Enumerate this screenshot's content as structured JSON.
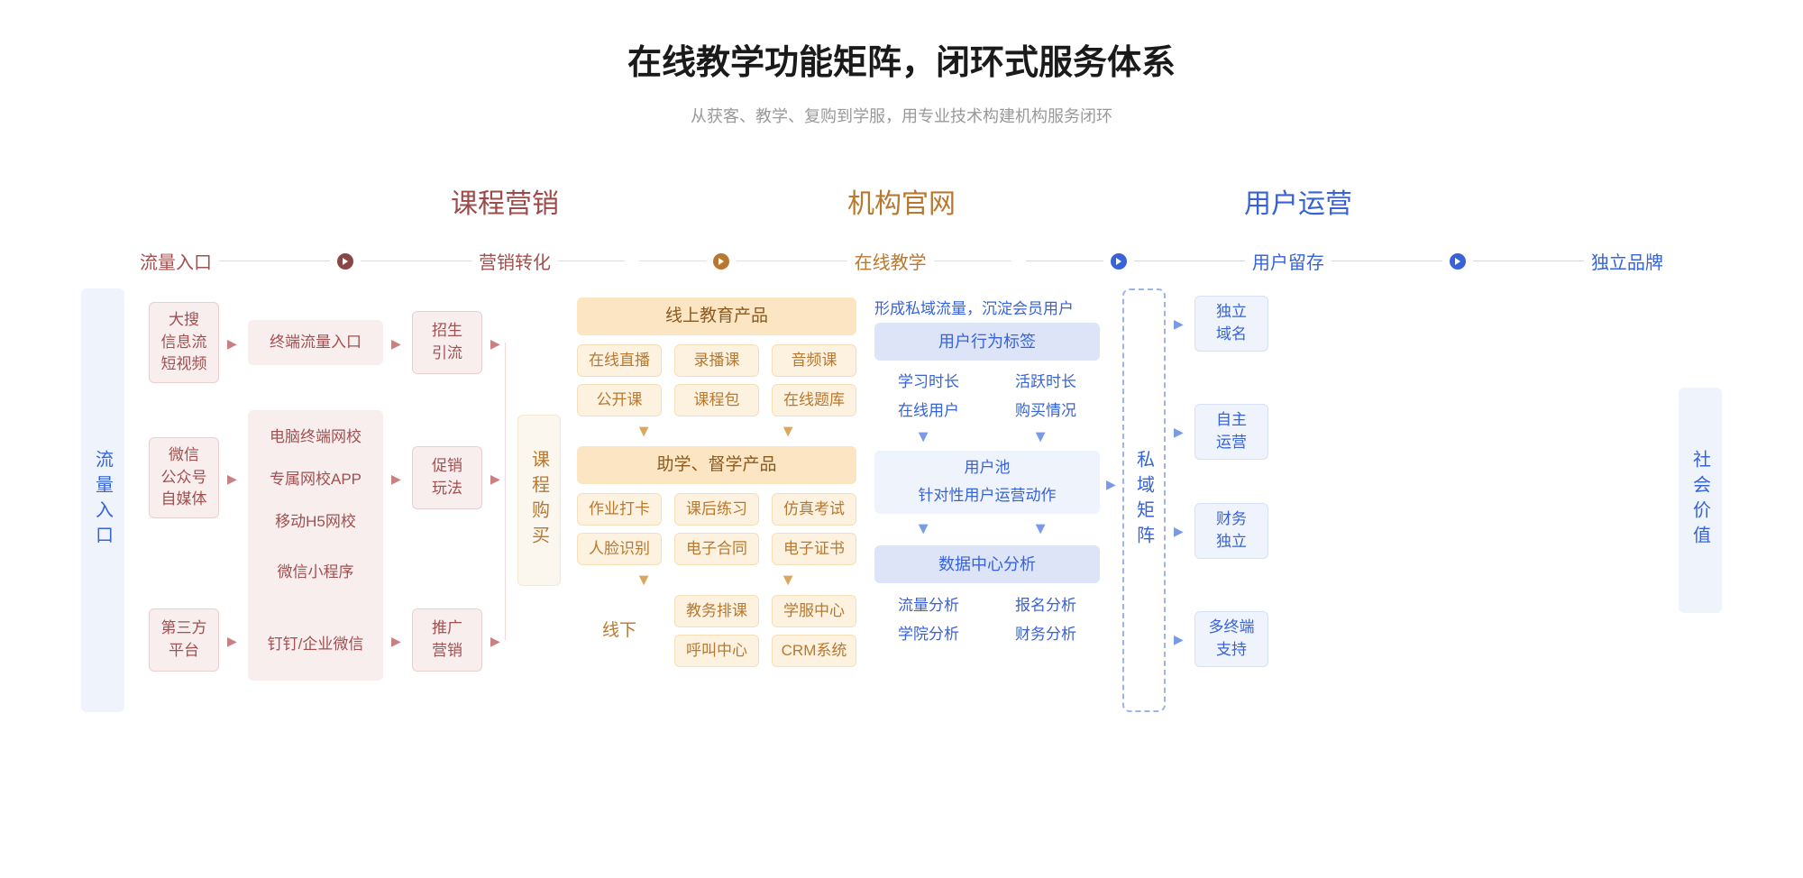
{
  "title": "在线教学功能矩阵，闭环式服务体系",
  "subtitle": "从获客、教学、复购到学服，用专业技术构建机构服务闭环",
  "sections": {
    "s1": "课程营销",
    "s2": "机构官网",
    "s3": "用户运营"
  },
  "flow": {
    "f1": "流量入口",
    "f2": "营销转化",
    "f3": "在线教学",
    "f4": "用户留存",
    "f5": "独立品牌"
  },
  "vbars": {
    "left": "流量入口",
    "right": "社会价值",
    "mid": "课程购买",
    "dashed": "私域矩阵"
  },
  "red": {
    "c1": "大搜\n信息流\n短视频",
    "c2": "微信\n公众号\n自媒体",
    "c3": "第三方\n平台",
    "m1": "终端流量入口",
    "m2": "电脑终端网校",
    "m3": "专属网校APP",
    "m4": "移动H5网校",
    "m5": "微信小程序",
    "m6": "钉钉/企业微信",
    "r1": "招生\n引流",
    "r2": "促销\n玩法",
    "r3": "推广\n营销"
  },
  "orange": {
    "h1": "线上教育产品",
    "h2": "助学、督学产品",
    "g1": [
      "在线直播",
      "录播课",
      "音频课"
    ],
    "g2": [
      "公开课",
      "课程包",
      "在线题库"
    ],
    "g3": [
      "作业打卡",
      "课后练习",
      "仿真考试"
    ],
    "g4": [
      "人脸识别",
      "电子合同",
      "电子证书"
    ],
    "offline": "线下",
    "g5": [
      "教务排课",
      "学服中心"
    ],
    "g6": [
      "呼叫中心",
      "CRM系统"
    ]
  },
  "blue": {
    "note": "形成私域流量，沉淀会员用户",
    "h1": "用户行为标签",
    "b1": [
      "学习时长",
      "活跃时长"
    ],
    "b2": [
      "在线用户",
      "购买情况"
    ],
    "h2": "用户池",
    "h2b": "针对性用户运营动作",
    "h3": "数据中心分析",
    "b3": [
      "流量分析",
      "报名分析"
    ],
    "b4": [
      "学院分析",
      "财务分析"
    ],
    "r1": "独立\n域名",
    "r2": "自主\n运营",
    "r3": "财务\n独立",
    "r4": "多终端\n支持"
  },
  "colors": {
    "red": "#a05050",
    "orange": "#b87830",
    "blue": "#3863d6",
    "bg": "#ffffff"
  }
}
